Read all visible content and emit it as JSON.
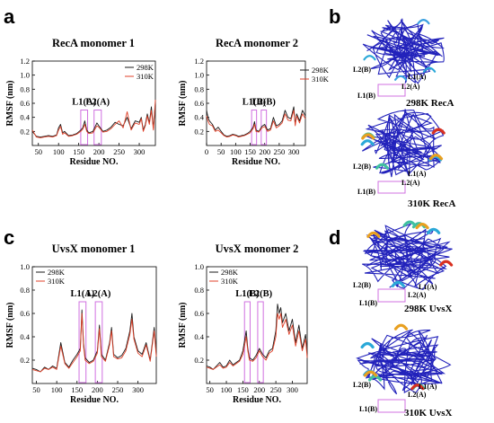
{
  "panel_letters": [
    "a",
    "b",
    "c",
    "d"
  ],
  "colors": {
    "t298": "#1a1a1a",
    "t310": "#e04028",
    "roi": "#d070e0",
    "backbone": "#2222bb"
  },
  "structures": [
    {
      "title": "298K RecA",
      "labels": [
        "L2(B)",
        "L1(A)",
        "L2(A)",
        "L1(B)"
      ]
    },
    {
      "title": "310K RecA",
      "labels": [
        "L2(B)",
        "L1(A)",
        "L2(A)",
        "L1(B)"
      ]
    },
    {
      "title": "298K UvsX",
      "labels": [
        "L2(B)",
        "L1(A)",
        "L2(A)",
        "L1(B)"
      ]
    },
    {
      "title": "310K UvsX",
      "labels": [
        "L2(B)",
        "L1(A)",
        "L2(A)",
        "L1(B)"
      ]
    }
  ],
  "chart_data": [
    {
      "type": "line",
      "title": "RecA monomer 1",
      "xlabel": "Residue NO.",
      "ylabel": "RMSF (nm)",
      "xlim": [
        35,
        340
      ],
      "ylim": [
        0,
        1.2
      ],
      "xticks": [
        50,
        100,
        150,
        200,
        250,
        300
      ],
      "yticks": [
        0.2,
        0.4,
        0.6,
        0.8,
        1.0,
        1.2
      ],
      "legend": "top-right",
      "regions": [
        {
          "label": "L1(A)",
          "range": [
            155,
            172
          ]
        },
        {
          "label": "L2(A)",
          "range": [
            188,
            206
          ]
        }
      ],
      "series": [
        {
          "name": "298K",
          "x": [
            35,
            45,
            55,
            65,
            75,
            85,
            95,
            100,
            105,
            110,
            115,
            125,
            135,
            145,
            155,
            160,
            165,
            170,
            175,
            185,
            195,
            200,
            210,
            220,
            230,
            240,
            250,
            260,
            270,
            280,
            290,
            300,
            305,
            310,
            315,
            320,
            325,
            330,
            335,
            340
          ],
          "y": [
            0.2,
            0.13,
            0.12,
            0.13,
            0.14,
            0.13,
            0.15,
            0.25,
            0.3,
            0.18,
            0.2,
            0.14,
            0.15,
            0.17,
            0.22,
            0.25,
            0.35,
            0.22,
            0.18,
            0.2,
            0.32,
            0.28,
            0.2,
            0.22,
            0.26,
            0.33,
            0.3,
            0.28,
            0.4,
            0.24,
            0.35,
            0.33,
            0.4,
            0.22,
            0.3,
            0.45,
            0.32,
            0.55,
            0.25,
            0.6
          ]
        },
        {
          "name": "310K",
          "x": [
            35,
            45,
            55,
            65,
            75,
            85,
            95,
            100,
            105,
            110,
            115,
            125,
            135,
            145,
            155,
            160,
            165,
            170,
            175,
            185,
            195,
            200,
            210,
            220,
            230,
            240,
            250,
            260,
            270,
            280,
            290,
            300,
            305,
            310,
            315,
            320,
            325,
            330,
            335,
            340
          ],
          "y": [
            0.22,
            0.12,
            0.11,
            0.12,
            0.13,
            0.12,
            0.14,
            0.22,
            0.27,
            0.16,
            0.18,
            0.13,
            0.14,
            0.16,
            0.2,
            0.23,
            0.3,
            0.2,
            0.17,
            0.18,
            0.28,
            0.26,
            0.19,
            0.2,
            0.24,
            0.3,
            0.35,
            0.25,
            0.48,
            0.22,
            0.32,
            0.3,
            0.38,
            0.2,
            0.28,
            0.42,
            0.3,
            0.5,
            0.22,
            0.65
          ]
        }
      ]
    },
    {
      "type": "line",
      "title": "RecA monomer 2",
      "xlabel": "Residue NO.",
      "ylabel": "RMSF (nm)",
      "xlim": [
        0,
        340
      ],
      "ylim": [
        0,
        1.2
      ],
      "xticks": [
        0,
        50,
        100,
        150,
        200,
        250,
        300
      ],
      "yticks": [
        0.2,
        0.4,
        0.6,
        0.8,
        1.0,
        1.2
      ],
      "legend": "top-right",
      "regions": [
        {
          "label": "L1(B)",
          "range": [
            155,
            172
          ]
        },
        {
          "label": "L2(B)",
          "range": [
            188,
            206
          ]
        }
      ],
      "series": [
        {
          "name": "298K",
          "x": [
            0,
            5,
            10,
            20,
            30,
            40,
            50,
            60,
            70,
            80,
            90,
            100,
            110,
            120,
            130,
            140,
            150,
            160,
            165,
            170,
            180,
            190,
            200,
            210,
            220,
            230,
            240,
            250,
            260,
            270,
            280,
            290,
            300,
            305,
            310,
            320,
            330,
            340
          ],
          "y": [
            0.5,
            0.4,
            0.35,
            0.3,
            0.22,
            0.26,
            0.2,
            0.15,
            0.13,
            0.14,
            0.16,
            0.15,
            0.13,
            0.14,
            0.15,
            0.17,
            0.2,
            0.26,
            0.34,
            0.22,
            0.2,
            0.27,
            0.3,
            0.22,
            0.24,
            0.4,
            0.28,
            0.3,
            0.35,
            0.5,
            0.4,
            0.38,
            0.55,
            0.3,
            0.45,
            0.35,
            0.5,
            0.42
          ]
        },
        {
          "name": "310K",
          "x": [
            0,
            5,
            10,
            20,
            30,
            40,
            50,
            60,
            70,
            80,
            90,
            100,
            110,
            120,
            130,
            140,
            150,
            160,
            165,
            170,
            180,
            190,
            200,
            210,
            220,
            230,
            240,
            250,
            260,
            270,
            280,
            290,
            300,
            305,
            310,
            320,
            330,
            340
          ],
          "y": [
            0.42,
            0.35,
            0.3,
            0.28,
            0.2,
            0.22,
            0.18,
            0.14,
            0.12,
            0.13,
            0.15,
            0.14,
            0.12,
            0.13,
            0.14,
            0.16,
            0.18,
            0.24,
            0.3,
            0.2,
            0.19,
            0.25,
            0.27,
            0.2,
            0.22,
            0.35,
            0.25,
            0.28,
            0.32,
            0.45,
            0.36,
            0.35,
            0.5,
            0.28,
            0.42,
            0.32,
            0.45,
            0.38
          ]
        }
      ]
    },
    {
      "type": "line",
      "title": "UvsX monomer 1",
      "xlabel": "Residue NO.",
      "ylabel": "RMSF (nm)",
      "xlim": [
        40,
        345
      ],
      "ylim": [
        0,
        1.0
      ],
      "xticks": [
        50,
        100,
        150,
        200,
        250,
        300
      ],
      "yticks": [
        0.2,
        0.4,
        0.6,
        0.8,
        1.0
      ],
      "legend": "top-left",
      "regions": [
        {
          "label": "L1(A)",
          "range": [
            155,
            172
          ]
        },
        {
          "label": "L2(A)",
          "range": [
            195,
            212
          ]
        }
      ],
      "series": [
        {
          "name": "298K",
          "x": [
            40,
            50,
            60,
            70,
            80,
            90,
            100,
            110,
            120,
            130,
            140,
            150,
            158,
            162,
            166,
            170,
            180,
            190,
            200,
            205,
            210,
            220,
            230,
            235,
            240,
            250,
            260,
            270,
            280,
            285,
            290,
            300,
            310,
            320,
            330,
            340,
            345
          ],
          "y": [
            0.13,
            0.12,
            0.1,
            0.14,
            0.12,
            0.15,
            0.13,
            0.35,
            0.18,
            0.14,
            0.2,
            0.25,
            0.3,
            0.63,
            0.35,
            0.22,
            0.18,
            0.2,
            0.28,
            0.5,
            0.25,
            0.2,
            0.35,
            0.48,
            0.25,
            0.22,
            0.24,
            0.3,
            0.45,
            0.6,
            0.4,
            0.28,
            0.25,
            0.35,
            0.2,
            0.48,
            0.25
          ]
        },
        {
          "name": "310K",
          "x": [
            40,
            50,
            60,
            70,
            80,
            90,
            100,
            110,
            120,
            130,
            140,
            150,
            158,
            162,
            166,
            170,
            180,
            190,
            200,
            205,
            210,
            220,
            230,
            235,
            240,
            250,
            260,
            270,
            280,
            285,
            290,
            300,
            310,
            320,
            330,
            340,
            345
          ],
          "y": [
            0.12,
            0.11,
            0.1,
            0.13,
            0.12,
            0.14,
            0.12,
            0.32,
            0.17,
            0.13,
            0.18,
            0.23,
            0.28,
            0.6,
            0.32,
            0.2,
            0.17,
            0.19,
            0.26,
            0.47,
            0.23,
            0.19,
            0.33,
            0.45,
            0.23,
            0.21,
            0.22,
            0.28,
            0.42,
            0.55,
            0.38,
            0.26,
            0.23,
            0.33,
            0.19,
            0.45,
            0.23
          ]
        }
      ]
    },
    {
      "type": "line",
      "title": "UvsX monomer 2",
      "xlabel": "Residue NO.",
      "ylabel": "RMSF (nm)",
      "xlim": [
        40,
        345
      ],
      "ylim": [
        0,
        1.0
      ],
      "xticks": [
        50,
        100,
        150,
        200,
        250,
        300
      ],
      "yticks": [
        0.2,
        0.4,
        0.6,
        0.8,
        1.0
      ],
      "legend": "top-left",
      "regions": [
        {
          "label": "L1(B)",
          "range": [
            155,
            172
          ]
        },
        {
          "label": "L2(B)",
          "range": [
            195,
            212
          ]
        }
      ],
      "series": [
        {
          "name": "298K",
          "x": [
            40,
            50,
            60,
            70,
            80,
            90,
            100,
            110,
            120,
            130,
            140,
            150,
            160,
            165,
            170,
            180,
            190,
            200,
            210,
            220,
            230,
            240,
            250,
            255,
            260,
            265,
            270,
            280,
            290,
            300,
            310,
            320,
            330,
            340,
            345
          ],
          "y": [
            0.15,
            0.14,
            0.12,
            0.15,
            0.18,
            0.14,
            0.15,
            0.2,
            0.16,
            0.18,
            0.2,
            0.28,
            0.45,
            0.3,
            0.22,
            0.2,
            0.24,
            0.3,
            0.25,
            0.22,
            0.28,
            0.3,
            0.45,
            0.68,
            0.6,
            0.65,
            0.52,
            0.6,
            0.45,
            0.55,
            0.35,
            0.5,
            0.3,
            0.42,
            0.25
          ]
        },
        {
          "name": "310K",
          "x": [
            40,
            50,
            60,
            70,
            80,
            90,
            100,
            110,
            120,
            130,
            140,
            150,
            160,
            165,
            170,
            180,
            190,
            200,
            210,
            220,
            230,
            240,
            250,
            255,
            260,
            265,
            270,
            280,
            290,
            300,
            310,
            320,
            330,
            340,
            345
          ],
          "y": [
            0.14,
            0.13,
            0.12,
            0.14,
            0.16,
            0.13,
            0.14,
            0.18,
            0.15,
            0.17,
            0.19,
            0.25,
            0.4,
            0.28,
            0.2,
            0.19,
            0.22,
            0.28,
            0.23,
            0.2,
            0.26,
            0.28,
            0.4,
            0.6,
            0.55,
            0.6,
            0.48,
            0.55,
            0.42,
            0.5,
            0.32,
            0.45,
            0.28,
            0.38,
            0.22
          ]
        }
      ]
    }
  ]
}
